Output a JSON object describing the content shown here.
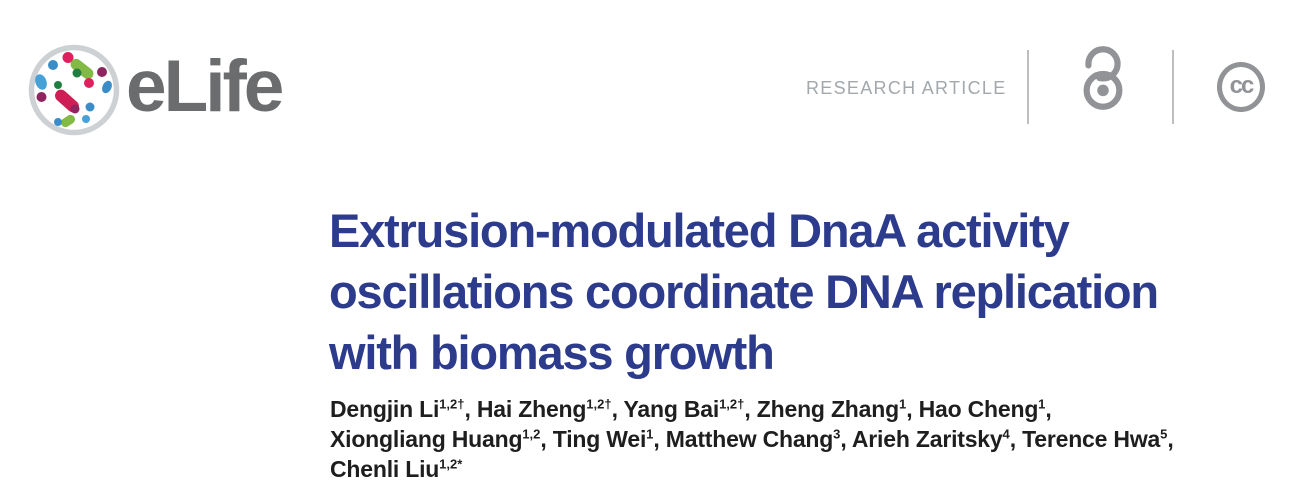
{
  "brand": {
    "wordmark": "eLife"
  },
  "header": {
    "article_type": "RESEARCH ARTICLE",
    "cc_label": "cc",
    "icons": {
      "open_access": "open-access-padlock",
      "license": "creative-commons"
    }
  },
  "title": {
    "lines": [
      "Extrusion-modulated DnaA activity",
      "oscillations coordinate DNA replication",
      "with biomass growth"
    ]
  },
  "authors": {
    "lines": [
      [
        {
          "name": "Dengjin Li",
          "sup": "1,2†"
        },
        {
          "name": "Hai Zheng",
          "sup": "1,2†"
        },
        {
          "name": "Yang Bai",
          "sup": "1,2†"
        },
        {
          "name": "Zheng Zhang",
          "sup": "1"
        },
        {
          "name": "Hao Cheng",
          "sup": "1"
        }
      ],
      [
        {
          "name": "Xiongliang Huang",
          "sup": "1,2"
        },
        {
          "name": "Ting Wei",
          "sup": "1"
        },
        {
          "name": "Matthew Chang",
          "sup": "3"
        },
        {
          "name": "Arieh Zaritsky",
          "sup": "4"
        },
        {
          "name": "Terence Hwa",
          "sup": "5"
        }
      ],
      [
        {
          "name": "Chenli Liu",
          "sup": "1,2*"
        }
      ]
    ]
  },
  "colors": {
    "title_blue": "#2c3b8c",
    "author_black": "#1f1e1e",
    "wordmark_gray": "#6a6c6e",
    "kicker_gray": "#a3a8ac",
    "icon_gray": "#919396",
    "divider_gray": "#bcbec0",
    "logo_ring_gray": "#ced1d3",
    "logo_palette": [
      "#3a8dc6",
      "#45a1d8",
      "#82ba45",
      "#1f7f40",
      "#e01f5f",
      "#cf1e56",
      "#8f2560"
    ]
  }
}
